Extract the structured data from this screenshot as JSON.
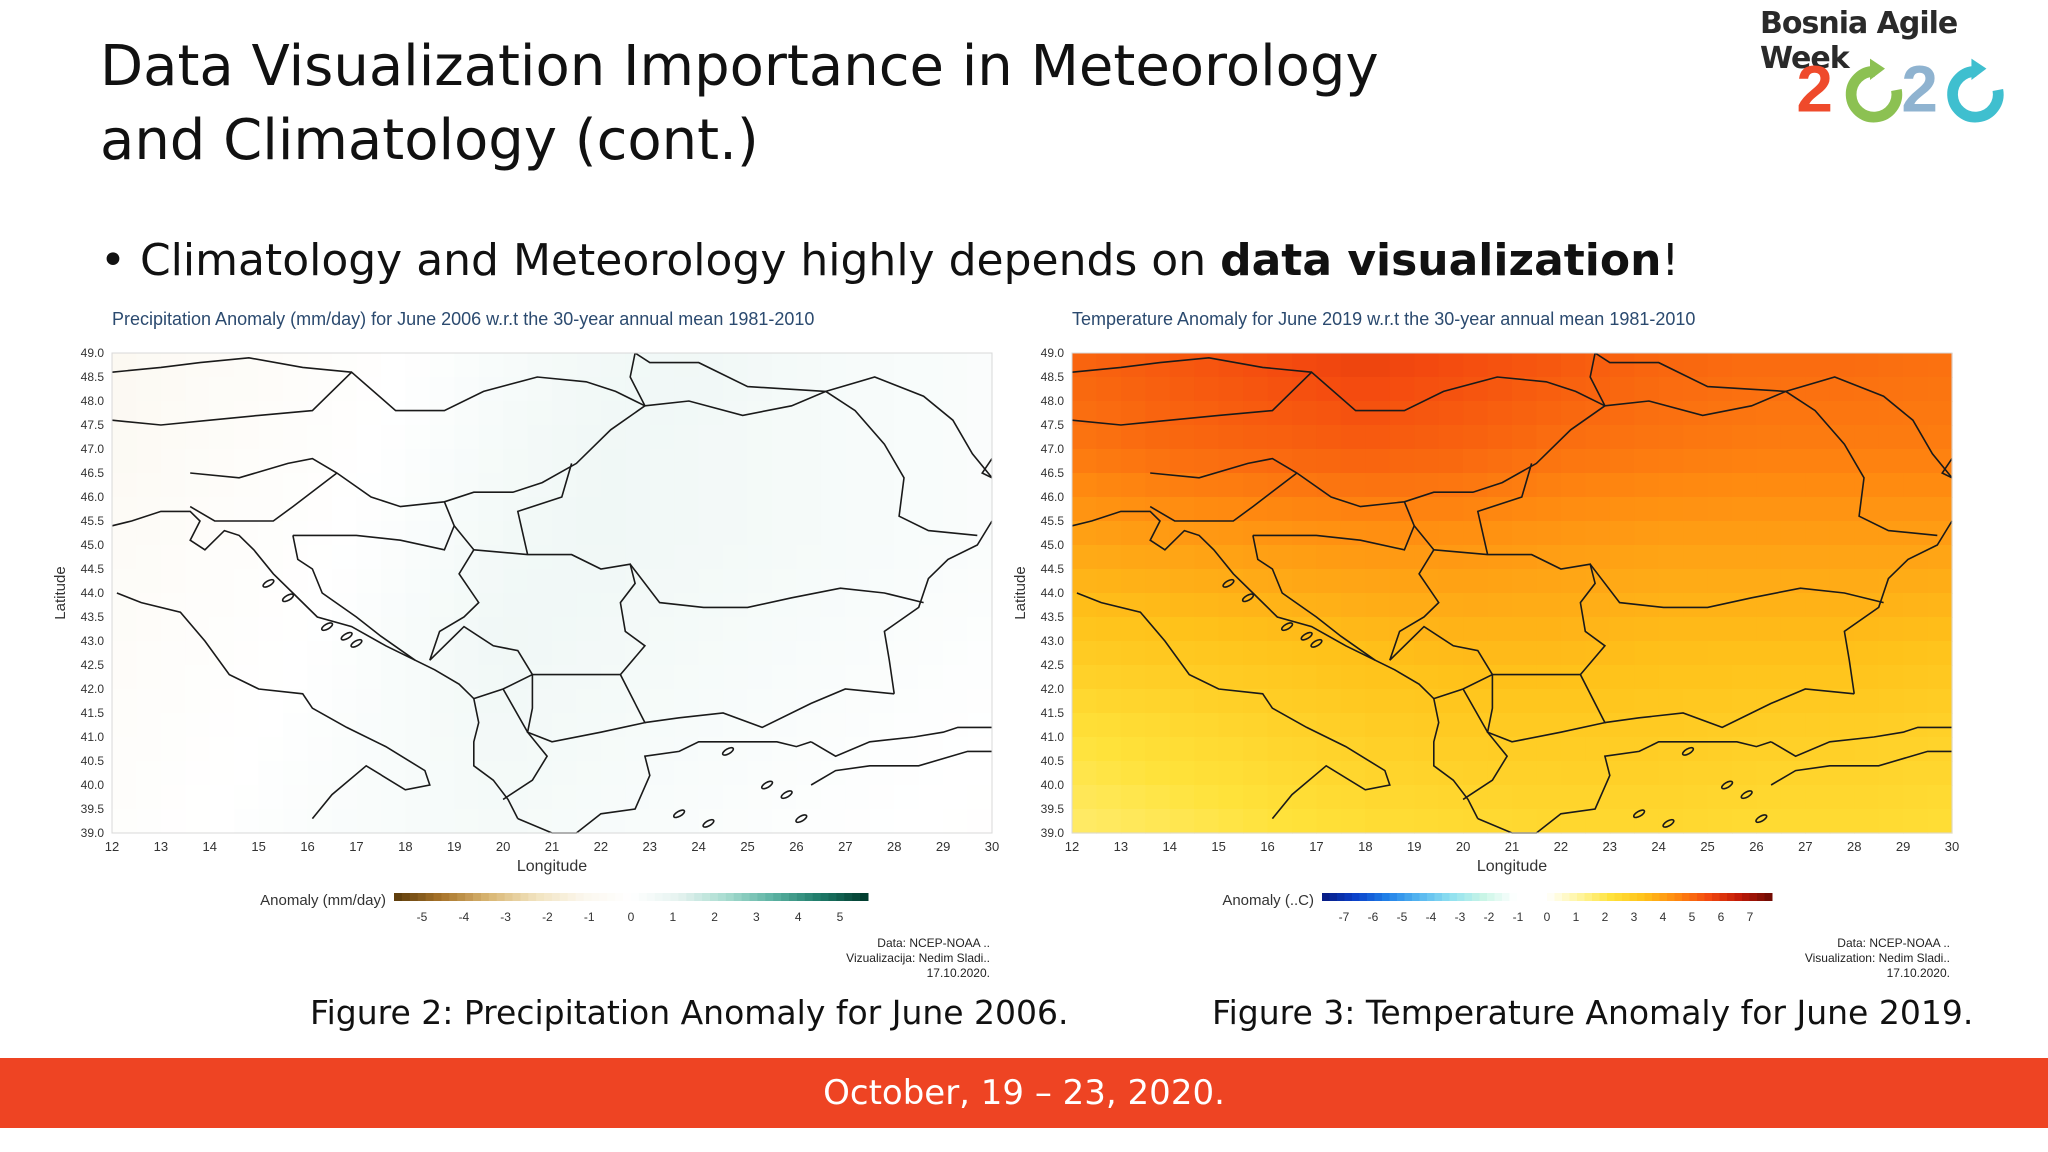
{
  "slide": {
    "title_line1": "Data Visualization Importance in Meteorology",
    "title_line2": "and Climatology (cont.)",
    "bullet_prefix": "• Climatology and Meteorology highly depends on ",
    "bullet_bold": "data visualization",
    "bullet_suffix": "!",
    "logo_text": "Bosnia Agile Week",
    "logo_year_digits": [
      "2",
      "0",
      "2",
      "0"
    ],
    "footer": "October, 19 – 23, 2020."
  },
  "colors": {
    "footer_bg": "#ee4423",
    "logo_red": "#ef4a2b",
    "logo_green": "#8cc152",
    "logo_blue": "#8fb3d0",
    "logo_teal": "#3fbfcf"
  },
  "figures": [
    {
      "title": "Precipitation Anomaly (mm/day) for June 2006 w.r.t the 30-year annual mean 1981-2010",
      "ylabel": "Latitude",
      "xlabel": "Longitude",
      "colorbar_label": "Anomaly (mm/day)",
      "colorbar_ticks": [
        "-5",
        "-4",
        "-3",
        "-2",
        "-1",
        "0",
        "1",
        "2",
        "3",
        "4",
        "5"
      ],
      "colorbar_colors": [
        "#5a3a0a",
        "#a8742a",
        "#d9b673",
        "#f1e3bf",
        "#fbf7ee",
        "#ffffff",
        "#e6f3f0",
        "#a8dcd0",
        "#5cb3a3",
        "#1d7a68",
        "#00382b"
      ],
      "credit_lines": [
        "Data: NCEP-NOAA ..",
        "Vizualizacija: Nedim Sladi..",
        "17.10.2020."
      ],
      "caption": "Figure 2: Precipitation Anomaly for June 2006."
    },
    {
      "title": "Temperature Anomaly for June 2019 w.r.t the 30-year annual mean 1981-2010",
      "ylabel": "Latitude",
      "xlabel": "Longitude",
      "colorbar_label": "Anomaly (..C)",
      "colorbar_ticks": [
        "-7",
        "-6",
        "-5",
        "-4",
        "-3",
        "-2",
        "-1",
        "0",
        "1",
        "2",
        "3",
        "4",
        "5",
        "6",
        "7"
      ],
      "colorbar_colors": [
        "#081a80",
        "#0a3fc8",
        "#1f7fe8",
        "#55b6f0",
        "#8fe0f0",
        "#c8f5e6",
        "#ffffff",
        "#ffffff",
        "#fff5a0",
        "#ffe23a",
        "#ffc21a",
        "#ff8a10",
        "#f44a0f",
        "#c01a08",
        "#6a0a04"
      ],
      "credit_lines": [
        "Data: NCEP-NOAA ..",
        "Visualization: Nedim Sladi..",
        "17.10.2020."
      ],
      "caption": "Figure 3: Temperature Anomaly for June 2019."
    }
  ],
  "chart_data": [
    {
      "type": "heatmap",
      "title": "Precipitation Anomaly (mm/day) for June 2006 w.r.t the 30-year annual mean 1981-2010",
      "xlabel": "Longitude",
      "ylabel": "Latitude",
      "xlim": [
        12,
        30
      ],
      "ylim": [
        39.0,
        49.0
      ],
      "x_ticks": [
        "12",
        "13",
        "14",
        "15",
        "16",
        "17",
        "18",
        "19",
        "20",
        "21",
        "22",
        "23",
        "24",
        "25",
        "26",
        "27",
        "28",
        "29",
        "30"
      ],
      "y_ticks": [
        "39.0",
        "39.5",
        "40.0",
        "40.5",
        "41.0",
        "41.5",
        "42.0",
        "42.5",
        "43.0",
        "43.5",
        "44.0",
        "44.5",
        "45.0",
        "45.5",
        "46.0",
        "46.5",
        "47.0",
        "47.5",
        "48.0",
        "48.5",
        "49.0"
      ],
      "colorbar_range": [
        -5,
        5
      ],
      "approx_values_note_free": true,
      "field": [
        [
          -0.8,
          -0.5,
          -0.3,
          0.0,
          0.3,
          0.5,
          0.6,
          0.4,
          0.3,
          0.2
        ],
        [
          -0.7,
          -0.4,
          -0.2,
          0.1,
          0.4,
          0.6,
          0.5,
          0.4,
          0.3,
          0.2
        ],
        [
          -0.5,
          -0.3,
          -0.1,
          0.2,
          0.5,
          0.6,
          0.5,
          0.4,
          0.3,
          0.2
        ],
        [
          -0.4,
          -0.2,
          0.0,
          0.3,
          0.6,
          0.5,
          0.4,
          0.3,
          0.2,
          0.1
        ],
        [
          -0.3,
          -0.1,
          0.1,
          0.3,
          0.5,
          0.4,
          0.3,
          0.2,
          0.1,
          0.0
        ],
        [
          -0.2,
          0.0,
          0.2,
          0.3,
          0.4,
          0.3,
          0.2,
          0.1,
          0.0,
          -0.1
        ]
      ]
    },
    {
      "type": "heatmap",
      "title": "Temperature Anomaly for June 2019 w.r.t the 30-year annual mean 1981-2010",
      "xlabel": "Longitude",
      "ylabel": "Latitude",
      "xlim": [
        12,
        30
      ],
      "ylim": [
        39.0,
        49.0
      ],
      "x_ticks": [
        "12",
        "13",
        "14",
        "15",
        "16",
        "17",
        "18",
        "19",
        "20",
        "21",
        "22",
        "23",
        "24",
        "25",
        "26",
        "27",
        "28",
        "29",
        "30"
      ],
      "y_ticks": [
        "39.0",
        "39.5",
        "40.0",
        "40.5",
        "41.0",
        "41.5",
        "42.0",
        "42.5",
        "43.0",
        "43.5",
        "44.0",
        "44.5",
        "45.0",
        "45.5",
        "46.0",
        "46.5",
        "47.0",
        "47.5",
        "48.0",
        "48.5",
        "49.0"
      ],
      "colorbar_range": [
        -7,
        7
      ],
      "field": [
        [
          4.6,
          4.8,
          5.0,
          5.2,
          5.0,
          4.8,
          4.6,
          4.5,
          4.5,
          4.4
        ],
        [
          4.3,
          4.5,
          4.6,
          4.7,
          4.6,
          4.4,
          4.3,
          4.2,
          4.2,
          4.2
        ],
        [
          3.5,
          3.6,
          3.7,
          3.8,
          3.8,
          3.7,
          3.6,
          3.6,
          3.6,
          3.6
        ],
        [
          2.8,
          2.9,
          3.0,
          3.1,
          3.2,
          3.2,
          3.1,
          3.1,
          3.1,
          3.0
        ],
        [
          2.0,
          2.2,
          2.4,
          2.6,
          2.7,
          2.7,
          2.7,
          2.6,
          2.6,
          2.5
        ],
        [
          1.5,
          1.7,
          1.9,
          2.1,
          2.2,
          2.3,
          2.3,
          2.2,
          2.2,
          2.1
        ]
      ]
    }
  ]
}
